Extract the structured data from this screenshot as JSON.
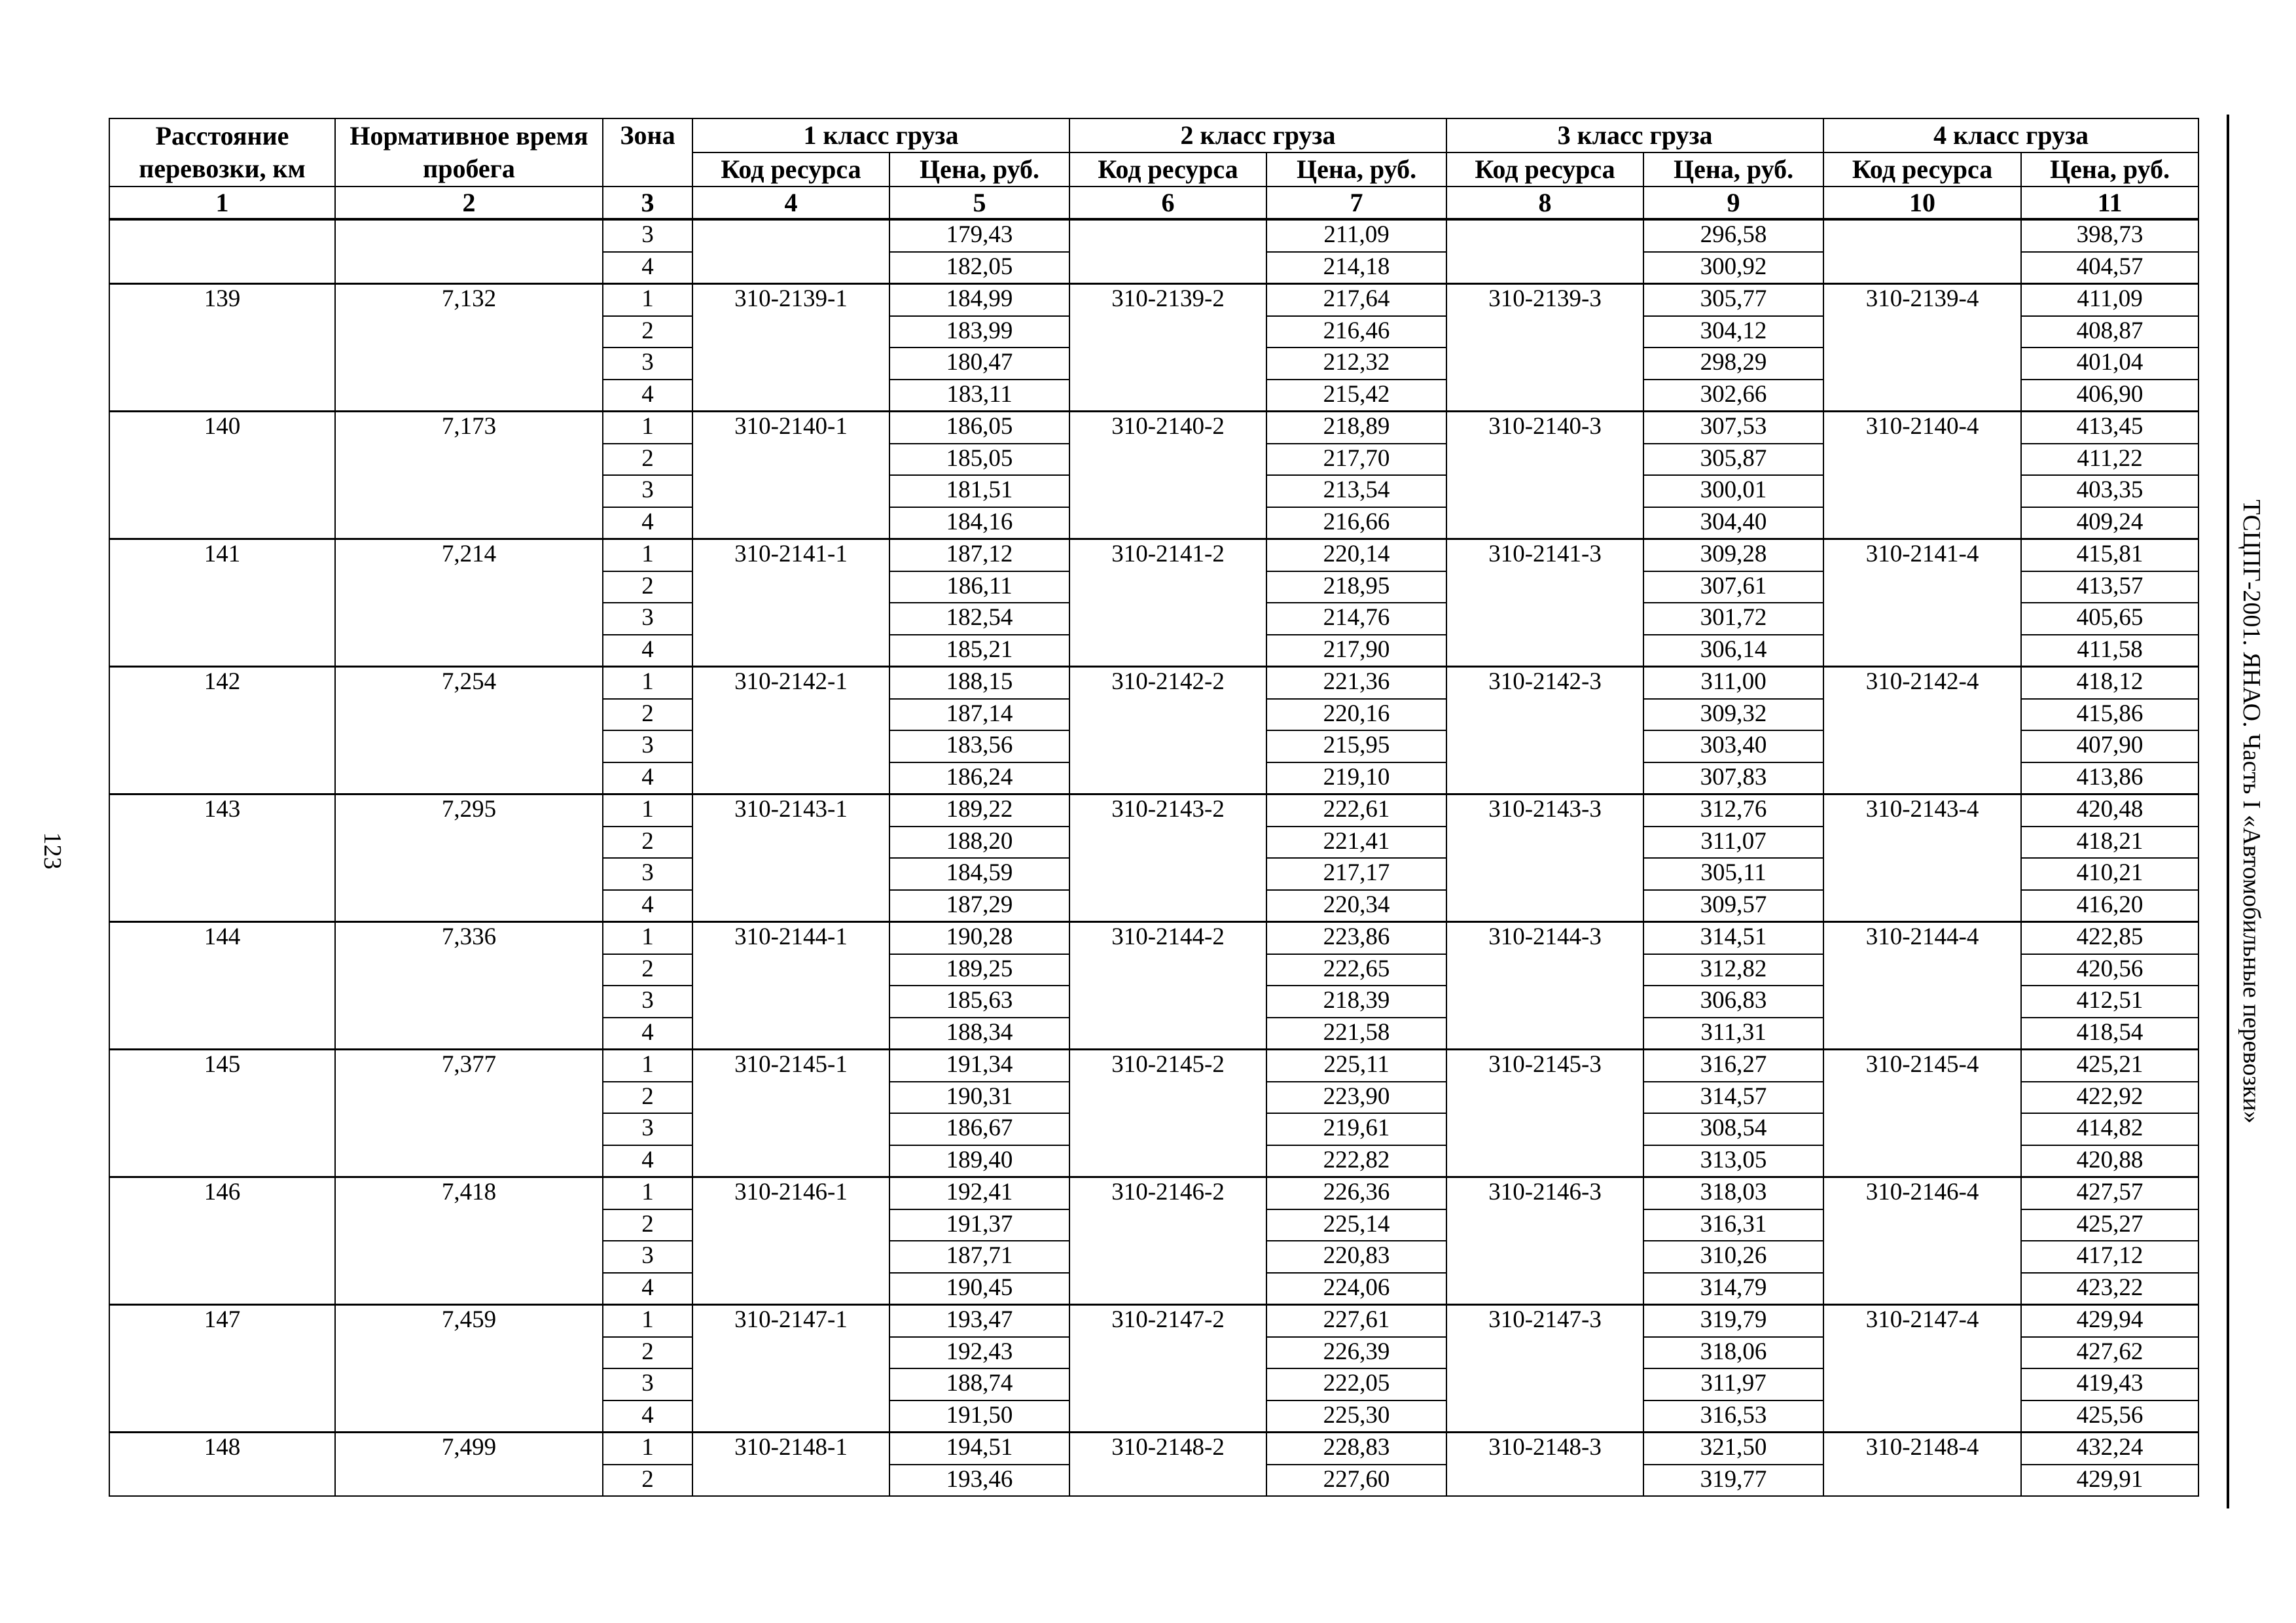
{
  "page_number": "123",
  "side_title": "ТСЦПГ-2001. ЯНАО. Часть I «Автомобильные перевозки»",
  "header": {
    "distance": "Расстояние перевозки, км",
    "time": "Нормативное время пробега",
    "zone": "Зона",
    "classes": [
      "1 класс груза",
      "2 класс груза",
      "3 класс груза",
      "4 класс груза"
    ],
    "code": "Код ресурса",
    "price": "Цена, руб.",
    "col_numbers": [
      "1",
      "2",
      "3",
      "4",
      "5",
      "6",
      "7",
      "8",
      "9",
      "10",
      "11"
    ]
  },
  "groups": [
    {
      "distance": "",
      "time": "",
      "codes": [
        "",
        "",
        "",
        ""
      ],
      "rows": [
        {
          "zone": "3",
          "prices": [
            "179,43",
            "211,09",
            "296,58",
            "398,73"
          ]
        },
        {
          "zone": "4",
          "prices": [
            "182,05",
            "214,18",
            "300,92",
            "404,57"
          ]
        }
      ]
    },
    {
      "distance": "139",
      "time": "7,132",
      "codes": [
        "310-2139-1",
        "310-2139-2",
        "310-2139-3",
        "310-2139-4"
      ],
      "rows": [
        {
          "zone": "1",
          "prices": [
            "184,99",
            "217,64",
            "305,77",
            "411,09"
          ]
        },
        {
          "zone": "2",
          "prices": [
            "183,99",
            "216,46",
            "304,12",
            "408,87"
          ]
        },
        {
          "zone": "3",
          "prices": [
            "180,47",
            "212,32",
            "298,29",
            "401,04"
          ]
        },
        {
          "zone": "4",
          "prices": [
            "183,11",
            "215,42",
            "302,66",
            "406,90"
          ]
        }
      ]
    },
    {
      "distance": "140",
      "time": "7,173",
      "codes": [
        "310-2140-1",
        "310-2140-2",
        "310-2140-3",
        "310-2140-4"
      ],
      "rows": [
        {
          "zone": "1",
          "prices": [
            "186,05",
            "218,89",
            "307,53",
            "413,45"
          ]
        },
        {
          "zone": "2",
          "prices": [
            "185,05",
            "217,70",
            "305,87",
            "411,22"
          ]
        },
        {
          "zone": "3",
          "prices": [
            "181,51",
            "213,54",
            "300,01",
            "403,35"
          ]
        },
        {
          "zone": "4",
          "prices": [
            "184,16",
            "216,66",
            "304,40",
            "409,24"
          ]
        }
      ]
    },
    {
      "distance": "141",
      "time": "7,214",
      "codes": [
        "310-2141-1",
        "310-2141-2",
        "310-2141-3",
        "310-2141-4"
      ],
      "rows": [
        {
          "zone": "1",
          "prices": [
            "187,12",
            "220,14",
            "309,28",
            "415,81"
          ]
        },
        {
          "zone": "2",
          "prices": [
            "186,11",
            "218,95",
            "307,61",
            "413,57"
          ]
        },
        {
          "zone": "3",
          "prices": [
            "182,54",
            "214,76",
            "301,72",
            "405,65"
          ]
        },
        {
          "zone": "4",
          "prices": [
            "185,21",
            "217,90",
            "306,14",
            "411,58"
          ]
        }
      ]
    },
    {
      "distance": "142",
      "time": "7,254",
      "codes": [
        "310-2142-1",
        "310-2142-2",
        "310-2142-3",
        "310-2142-4"
      ],
      "rows": [
        {
          "zone": "1",
          "prices": [
            "188,15",
            "221,36",
            "311,00",
            "418,12"
          ]
        },
        {
          "zone": "2",
          "prices": [
            "187,14",
            "220,16",
            "309,32",
            "415,86"
          ]
        },
        {
          "zone": "3",
          "prices": [
            "183,56",
            "215,95",
            "303,40",
            "407,90"
          ]
        },
        {
          "zone": "4",
          "prices": [
            "186,24",
            "219,10",
            "307,83",
            "413,86"
          ]
        }
      ]
    },
    {
      "distance": "143",
      "time": "7,295",
      "codes": [
        "310-2143-1",
        "310-2143-2",
        "310-2143-3",
        "310-2143-4"
      ],
      "rows": [
        {
          "zone": "1",
          "prices": [
            "189,22",
            "222,61",
            "312,76",
            "420,48"
          ]
        },
        {
          "zone": "2",
          "prices": [
            "188,20",
            "221,41",
            "311,07",
            "418,21"
          ]
        },
        {
          "zone": "3",
          "prices": [
            "184,59",
            "217,17",
            "305,11",
            "410,21"
          ]
        },
        {
          "zone": "4",
          "prices": [
            "187,29",
            "220,34",
            "309,57",
            "416,20"
          ]
        }
      ]
    },
    {
      "distance": "144",
      "time": "7,336",
      "codes": [
        "310-2144-1",
        "310-2144-2",
        "310-2144-3",
        "310-2144-4"
      ],
      "rows": [
        {
          "zone": "1",
          "prices": [
            "190,28",
            "223,86",
            "314,51",
            "422,85"
          ]
        },
        {
          "zone": "2",
          "prices": [
            "189,25",
            "222,65",
            "312,82",
            "420,56"
          ]
        },
        {
          "zone": "3",
          "prices": [
            "185,63",
            "218,39",
            "306,83",
            "412,51"
          ]
        },
        {
          "zone": "4",
          "prices": [
            "188,34",
            "221,58",
            "311,31",
            "418,54"
          ]
        }
      ]
    },
    {
      "distance": "145",
      "time": "7,377",
      "codes": [
        "310-2145-1",
        "310-2145-2",
        "310-2145-3",
        "310-2145-4"
      ],
      "rows": [
        {
          "zone": "1",
          "prices": [
            "191,34",
            "225,11",
            "316,27",
            "425,21"
          ]
        },
        {
          "zone": "2",
          "prices": [
            "190,31",
            "223,90",
            "314,57",
            "422,92"
          ]
        },
        {
          "zone": "3",
          "prices": [
            "186,67",
            "219,61",
            "308,54",
            "414,82"
          ]
        },
        {
          "zone": "4",
          "prices": [
            "189,40",
            "222,82",
            "313,05",
            "420,88"
          ]
        }
      ]
    },
    {
      "distance": "146",
      "time": "7,418",
      "codes": [
        "310-2146-1",
        "310-2146-2",
        "310-2146-3",
        "310-2146-4"
      ],
      "rows": [
        {
          "zone": "1",
          "prices": [
            "192,41",
            "226,36",
            "318,03",
            "427,57"
          ]
        },
        {
          "zone": "2",
          "prices": [
            "191,37",
            "225,14",
            "316,31",
            "425,27"
          ]
        },
        {
          "zone": "3",
          "prices": [
            "187,71",
            "220,83",
            "310,26",
            "417,12"
          ]
        },
        {
          "zone": "4",
          "prices": [
            "190,45",
            "224,06",
            "314,79",
            "423,22"
          ]
        }
      ]
    },
    {
      "distance": "147",
      "time": "7,459",
      "codes": [
        "310-2147-1",
        "310-2147-2",
        "310-2147-3",
        "310-2147-4"
      ],
      "rows": [
        {
          "zone": "1",
          "prices": [
            "193,47",
            "227,61",
            "319,79",
            "429,94"
          ]
        },
        {
          "zone": "2",
          "prices": [
            "192,43",
            "226,39",
            "318,06",
            "427,62"
          ]
        },
        {
          "zone": "3",
          "prices": [
            "188,74",
            "222,05",
            "311,97",
            "419,43"
          ]
        },
        {
          "zone": "4",
          "prices": [
            "191,50",
            "225,30",
            "316,53",
            "425,56"
          ]
        }
      ]
    },
    {
      "distance": "148",
      "time": "7,499",
      "codes": [
        "310-2148-1",
        "310-2148-2",
        "310-2148-3",
        "310-2148-4"
      ],
      "rows": [
        {
          "zone": "1",
          "prices": [
            "194,51",
            "228,83",
            "321,50",
            "432,24"
          ]
        },
        {
          "zone": "2",
          "prices": [
            "193,46",
            "227,60",
            "319,77",
            "429,91"
          ]
        }
      ]
    }
  ]
}
